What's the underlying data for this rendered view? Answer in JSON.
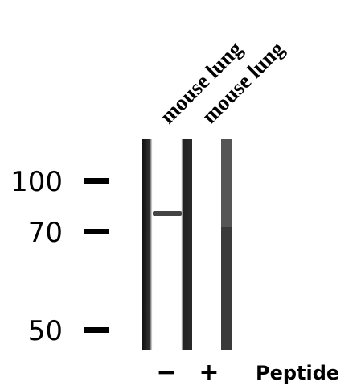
{
  "lanes": [
    {
      "label": "mouse lung",
      "peptide": "−"
    },
    {
      "label": "mouse lung",
      "peptide": "+"
    }
  ],
  "markers": [
    "100",
    "70",
    "50"
  ],
  "peptide_label": "Peptide"
}
